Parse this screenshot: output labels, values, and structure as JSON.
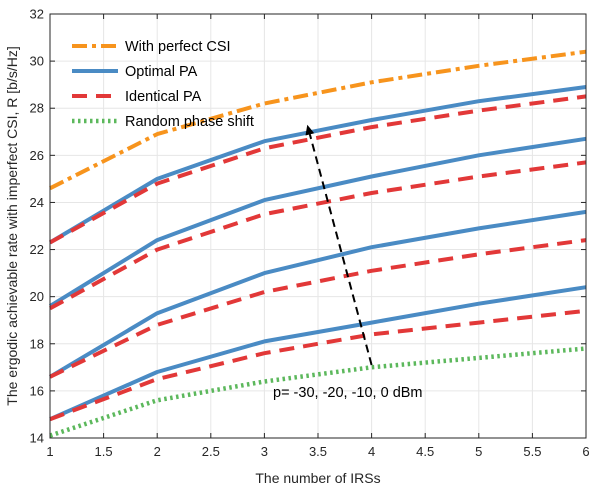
{
  "chart_data": {
    "type": "line",
    "title": "",
    "xlabel": "The number of IRSs",
    "ylabel": "The ergodic achievable rate with imperfect CSI, R [b/s/Hz]",
    "xlim": [
      1,
      6
    ],
    "ylim": [
      14,
      32
    ],
    "xticks": [
      1,
      1.5,
      2,
      2.5,
      3,
      3.5,
      4,
      4.5,
      5,
      5.5,
      6
    ],
    "xtick_labels": [
      "1",
      "1.5",
      "2",
      "2.5",
      "3",
      "3.5",
      "4",
      "4.5",
      "5",
      "5.5",
      "6"
    ],
    "yticks": [
      14,
      16,
      18,
      20,
      22,
      24,
      26,
      28,
      30,
      32
    ],
    "ytick_labels": [
      "14",
      "16",
      "18",
      "20",
      "22",
      "24",
      "26",
      "28",
      "30",
      "32"
    ],
    "grid": true,
    "legend_placement": "top-left",
    "legend": [
      {
        "label": "With perfect CSI",
        "color": "#F7941D",
        "style": "dashdot"
      },
      {
        "label": "Optimal PA",
        "color": "#4A8BC4",
        "style": "solid"
      },
      {
        "label": "Identical PA",
        "color": "#E23838",
        "style": "dashed"
      },
      {
        "label": "Random phase shift",
        "color": "#5CB85C",
        "style": "dotted"
      }
    ],
    "annotation": {
      "text": "p= -30, -20, -10, 0 dBm",
      "arrow_from": [
        4.0,
        17.1
      ],
      "arrow_to": [
        3.4,
        27.3
      ]
    },
    "x": [
      1,
      2,
      3,
      4,
      5,
      6
    ],
    "series": [
      {
        "group": "With perfect CSI",
        "color": "#F7941D",
        "style": "dashdot",
        "values": [
          24.6,
          26.9,
          28.2,
          29.1,
          29.8,
          30.4
        ]
      },
      {
        "group": "Optimal PA",
        "color": "#4A8BC4",
        "style": "solid",
        "values": [
          22.3,
          25.0,
          26.6,
          27.5,
          28.3,
          28.9
        ]
      },
      {
        "group": "Optimal PA",
        "color": "#4A8BC4",
        "style": "solid",
        "values": [
          19.6,
          22.4,
          24.1,
          25.1,
          26.0,
          26.7
        ]
      },
      {
        "group": "Optimal PA",
        "color": "#4A8BC4",
        "style": "solid",
        "values": [
          16.6,
          19.3,
          21.0,
          22.1,
          22.9,
          23.6
        ]
      },
      {
        "group": "Optimal PA",
        "color": "#4A8BC4",
        "style": "solid",
        "values": [
          14.8,
          16.8,
          18.1,
          18.9,
          19.7,
          20.4
        ]
      },
      {
        "group": "Identical PA",
        "color": "#E23838",
        "style": "dashed",
        "values": [
          22.3,
          24.8,
          26.3,
          27.2,
          27.9,
          28.5
        ]
      },
      {
        "group": "Identical PA",
        "color": "#E23838",
        "style": "dashed",
        "values": [
          19.5,
          22.0,
          23.5,
          24.4,
          25.1,
          25.7
        ]
      },
      {
        "group": "Identical PA",
        "color": "#E23838",
        "style": "dashed",
        "values": [
          16.6,
          18.8,
          20.2,
          21.1,
          21.8,
          22.4
        ]
      },
      {
        "group": "Identical PA",
        "color": "#E23838",
        "style": "dashed",
        "values": [
          14.8,
          16.5,
          17.6,
          18.4,
          18.9,
          19.4
        ]
      },
      {
        "group": "Random phase shift",
        "color": "#5CB85C",
        "style": "dotted",
        "values": [
          14.1,
          15.6,
          16.4,
          17.0,
          17.4,
          17.8
        ]
      }
    ]
  }
}
